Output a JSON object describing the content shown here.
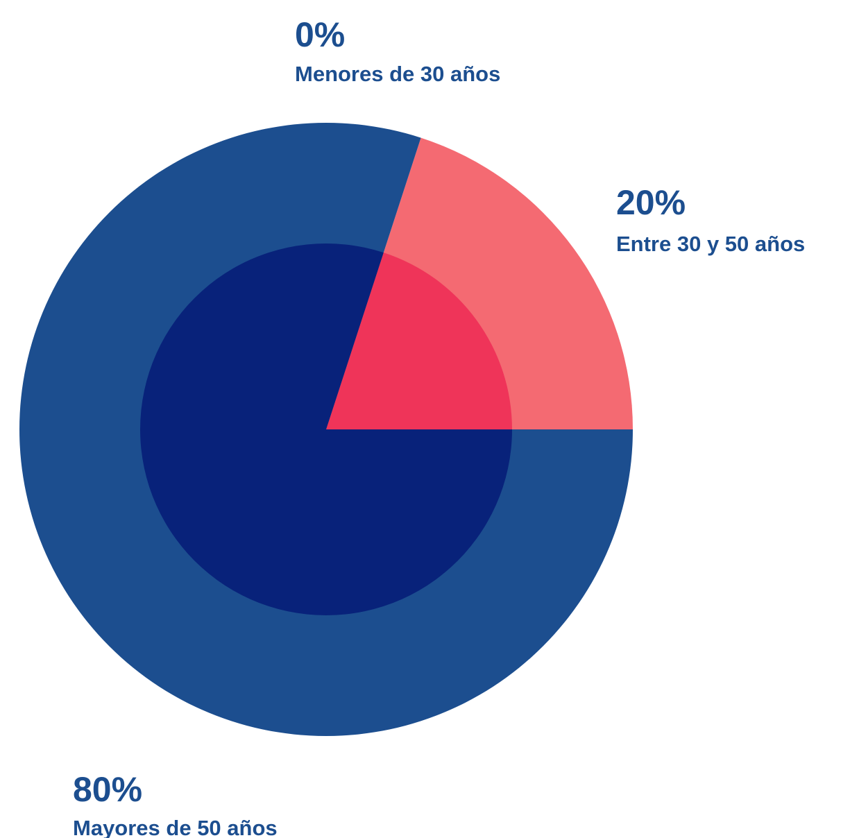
{
  "chart_data": {
    "type": "pie",
    "categories": [
      "Menores de 30 años",
      "Entre 30 y 50 años",
      "Mayores de 50 años"
    ],
    "values": [
      0,
      20,
      80
    ],
    "value_labels": [
      "0%",
      "20%",
      "80%"
    ],
    "colors": [
      "#1c4e8f",
      "#f46a72",
      "#1c4e8f"
    ],
    "inner_colors": [
      "#08227a",
      "#ef3459",
      "#08227a"
    ]
  }
}
